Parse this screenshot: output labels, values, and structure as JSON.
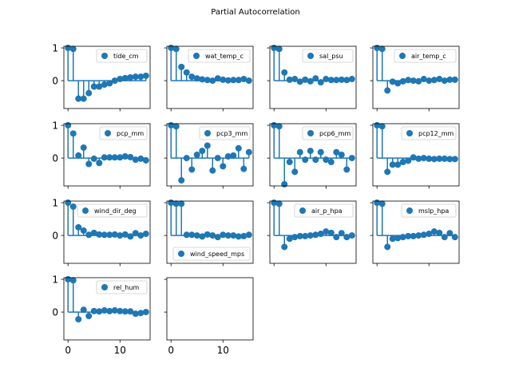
{
  "figure": {
    "title": "Partial Autocorrelation"
  },
  "style": {
    "stem_color": "#1f77b4",
    "marker_color": "#1f77b4",
    "baseline_color": "#1f77b4",
    "axes_color": "#000000"
  },
  "chart_data": [
    {
      "type": "stem",
      "name": "tide_cm",
      "legend": "top-right",
      "x": [
        0,
        1,
        2,
        3,
        4,
        5,
        6,
        7,
        8,
        9,
        10,
        11,
        12,
        13,
        14,
        15
      ],
      "y": [
        1.0,
        0.97,
        -0.55,
        -0.55,
        -0.38,
        -0.18,
        -0.18,
        -0.12,
        -0.08,
        0.0,
        0.05,
        0.08,
        0.1,
        0.12,
        0.12,
        0.15
      ],
      "ylim": [
        -0.85,
        1.05
      ],
      "xlim": [
        -0.8,
        15.8
      ],
      "yticks": [
        "0",
        "1"
      ],
      "xticks": []
    },
    {
      "type": "stem",
      "name": "wat_temp_c",
      "legend": "top-right",
      "x": [
        0,
        1,
        2,
        3,
        4,
        5,
        6,
        7,
        8,
        9,
        10,
        11,
        12,
        13,
        14,
        15
      ],
      "y": [
        1.0,
        0.97,
        0.42,
        0.25,
        0.12,
        0.07,
        0.04,
        0.02,
        0.0,
        0.07,
        0.03,
        0.01,
        0.02,
        0.02,
        0.05,
        0.0
      ],
      "ylim": [
        -0.85,
        1.05
      ],
      "xlim": [
        -0.8,
        15.8
      ],
      "yticks": [],
      "xticks": []
    },
    {
      "type": "stem",
      "name": "sal_psu",
      "legend": "top-right",
      "x": [
        0,
        1,
        2,
        3,
        4,
        5,
        6,
        7,
        8,
        9,
        10,
        11,
        12,
        13,
        14,
        15
      ],
      "y": [
        1.0,
        0.97,
        0.25,
        0.03,
        0.05,
        -0.03,
        0.03,
        -0.02,
        0.07,
        -0.05,
        0.05,
        0.02,
        0.02,
        0.03,
        0.02,
        0.05
      ],
      "ylim": [
        -0.85,
        1.05
      ],
      "xlim": [
        -0.8,
        15.8
      ],
      "yticks": [],
      "xticks": []
    },
    {
      "type": "stem",
      "name": "air_temp_c",
      "legend": "top-right",
      "x": [
        0,
        1,
        2,
        3,
        4,
        5,
        6,
        7,
        8,
        9,
        10,
        11,
        12,
        13,
        14,
        15
      ],
      "y": [
        1.0,
        0.97,
        -0.3,
        -0.03,
        -0.08,
        -0.02,
        0.02,
        0.0,
        -0.02,
        0.05,
        0.0,
        0.02,
        0.05,
        0.0,
        0.03,
        0.03
      ],
      "ylim": [
        -0.85,
        1.05
      ],
      "xlim": [
        -0.8,
        15.8
      ],
      "yticks": [],
      "xticks": []
    },
    {
      "type": "stem",
      "name": "pcp_mm",
      "legend": "top-right",
      "x": [
        0,
        1,
        2,
        3,
        4,
        5,
        6,
        7,
        8,
        9,
        10,
        11,
        12,
        13,
        14,
        15
      ],
      "y": [
        1.0,
        0.75,
        0.08,
        0.32,
        -0.18,
        -0.02,
        -0.15,
        0.02,
        0.02,
        0.02,
        0.02,
        0.05,
        0.03,
        -0.05,
        -0.02,
        -0.07
      ],
      "ylim": [
        -0.85,
        1.05
      ],
      "xlim": [
        -0.8,
        15.8
      ],
      "yticks": [
        "0",
        "1"
      ],
      "xticks": []
    },
    {
      "type": "stem",
      "name": "pcp3_mm",
      "legend": "top-right",
      "x": [
        0,
        1,
        2,
        3,
        4,
        5,
        6,
        7,
        8,
        9,
        10,
        11,
        12,
        13,
        14,
        15
      ],
      "y": [
        1.0,
        0.97,
        -0.68,
        0.0,
        -0.35,
        0.1,
        0.22,
        0.38,
        -0.38,
        0.0,
        -0.25,
        0.05,
        0.08,
        0.3,
        -0.33,
        0.18
      ],
      "ylim": [
        -0.85,
        1.05
      ],
      "xlim": [
        -0.8,
        15.8
      ],
      "yticks": [],
      "xticks": []
    },
    {
      "type": "stem",
      "name": "pcp6_mm",
      "legend": "top-right",
      "x": [
        0,
        1,
        2,
        3,
        4,
        5,
        6,
        7,
        8,
        9,
        10,
        11,
        12,
        13,
        14,
        15
      ],
      "y": [
        1.0,
        0.97,
        -0.8,
        -0.12,
        -0.42,
        0.18,
        -0.05,
        0.22,
        -0.05,
        0.18,
        -0.05,
        -0.12,
        0.18,
        0.1,
        -0.35,
        0.0
      ],
      "ylim": [
        -0.85,
        1.05
      ],
      "xlim": [
        -0.8,
        15.8
      ],
      "yticks": [],
      "xticks": []
    },
    {
      "type": "stem",
      "name": "pcp12_mm",
      "legend": "top-right",
      "x": [
        0,
        1,
        2,
        3,
        4,
        5,
        6,
        7,
        8,
        9,
        10,
        11,
        12,
        13,
        14,
        15
      ],
      "y": [
        1.0,
        0.97,
        -0.42,
        -0.2,
        -0.2,
        -0.12,
        -0.08,
        0.02,
        -0.02,
        0.0,
        -0.02,
        -0.03,
        -0.02,
        -0.02,
        -0.03,
        -0.03
      ],
      "ylim": [
        -0.85,
        1.05
      ],
      "xlim": [
        -0.8,
        15.8
      ],
      "yticks": [],
      "xticks": []
    },
    {
      "type": "stem",
      "name": "wind_dir_deg",
      "legend": "top-right",
      "x": [
        0,
        1,
        2,
        3,
        4,
        5,
        6,
        7,
        8,
        9,
        10,
        11,
        12,
        13,
        14,
        15
      ],
      "y": [
        1.0,
        0.88,
        0.25,
        0.15,
        0.02,
        0.08,
        0.03,
        0.02,
        0.02,
        0.03,
        0.0,
        0.03,
        -0.03,
        0.07,
        0.0,
        0.05
      ],
      "ylim": [
        -0.85,
        1.05
      ],
      "xlim": [
        -0.8,
        15.8
      ],
      "yticks": [
        "0",
        "1"
      ],
      "xticks": []
    },
    {
      "type": "stem",
      "name": "wind_speed_mps",
      "legend": "bottom-right",
      "x": [
        0,
        1,
        2,
        3,
        4,
        5,
        6,
        7,
        8,
        9,
        10,
        11,
        12,
        13,
        14,
        15
      ],
      "y": [
        1.0,
        0.97,
        0.97,
        0.02,
        0.02,
        0.0,
        -0.03,
        0.03,
        0.0,
        -0.05,
        0.02,
        0.0,
        0.0,
        -0.03,
        -0.02,
        0.02
      ],
      "ylim": [
        -0.85,
        1.05
      ],
      "xlim": [
        -0.8,
        15.8
      ],
      "yticks": [],
      "xticks": []
    },
    {
      "type": "stem",
      "name": "air_p_hpa",
      "legend": "top-right",
      "x": [
        0,
        1,
        2,
        3,
        4,
        5,
        6,
        7,
        8,
        9,
        10,
        11,
        12,
        13,
        14,
        15
      ],
      "y": [
        1.0,
        0.97,
        -0.35,
        -0.1,
        -0.05,
        -0.02,
        -0.02,
        0.0,
        0.02,
        0.05,
        0.12,
        0.08,
        -0.05,
        0.07,
        -0.05,
        0.0
      ],
      "ylim": [
        -0.85,
        1.05
      ],
      "xlim": [
        -0.8,
        15.8
      ],
      "yticks": [],
      "xticks": []
    },
    {
      "type": "stem",
      "name": "mslp_hpa",
      "legend": "top-right",
      "x": [
        0,
        1,
        2,
        3,
        4,
        5,
        6,
        7,
        8,
        9,
        10,
        11,
        12,
        13,
        14,
        15
      ],
      "y": [
        1.0,
        0.97,
        -0.35,
        -0.1,
        -0.08,
        -0.05,
        -0.02,
        -0.02,
        0.0,
        0.02,
        0.05,
        0.12,
        0.08,
        -0.05,
        0.07,
        -0.05
      ],
      "ylim": [
        -0.85,
        1.05
      ],
      "xlim": [
        -0.8,
        15.8
      ],
      "yticks": [],
      "xticks": []
    },
    {
      "type": "stem",
      "name": "rel_hum",
      "legend": "top-right",
      "x": [
        0,
        1,
        2,
        3,
        4,
        5,
        6,
        7,
        8,
        9,
        10,
        11,
        12,
        13,
        14,
        15
      ],
      "y": [
        1.0,
        0.97,
        -0.22,
        0.07,
        -0.12,
        0.03,
        0.02,
        0.05,
        0.03,
        0.05,
        0.03,
        0.02,
        0.02,
        -0.05,
        -0.03,
        0.0
      ],
      "ylim": [
        -0.85,
        1.05
      ],
      "xlim": [
        -0.8,
        15.8
      ],
      "yticks": [
        "0",
        "1"
      ],
      "xticks": [
        "0",
        "10"
      ]
    },
    {
      "type": "empty",
      "name": "",
      "xlim": [
        -0.8,
        15.8
      ],
      "ylim": [
        -0.85,
        1.05
      ],
      "yticks": [],
      "xticks": [
        "0",
        "10"
      ]
    }
  ]
}
